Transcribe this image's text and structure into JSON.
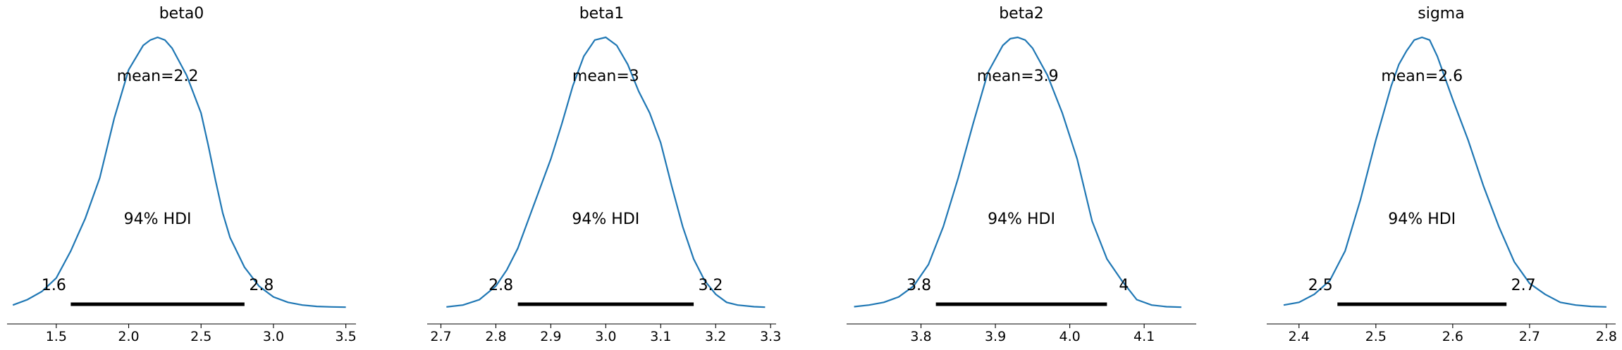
{
  "chart_data": [
    {
      "type": "line",
      "title": "beta0",
      "mean_label": "mean=2.2",
      "hdi_label": "94% HDI",
      "hdi": [
        1.6,
        2.8
      ],
      "hdi_tick_labels": [
        "1.6",
        "2.8"
      ],
      "xlim": [
        1.16,
        3.57
      ],
      "ticks": [
        1.5,
        2.0,
        2.5,
        3.0,
        3.5
      ],
      "tick_labels": [
        "1.5",
        "2.0",
        "2.5",
        "3.0",
        "3.5"
      ],
      "x": [
        1.2,
        1.3,
        1.4,
        1.5,
        1.55,
        1.6,
        1.65,
        1.7,
        1.8,
        1.9,
        2.0,
        2.1,
        2.15,
        2.2,
        2.25,
        2.3,
        2.4,
        2.5,
        2.55,
        2.6,
        2.65,
        2.7,
        2.8,
        2.9,
        3.0,
        3.1,
        3.2,
        3.3,
        3.4,
        3.5
      ],
      "y": [
        0.01,
        0.03,
        0.06,
        0.11,
        0.16,
        0.21,
        0.27,
        0.33,
        0.48,
        0.7,
        0.88,
        0.97,
        0.99,
        1.0,
        0.99,
        0.96,
        0.86,
        0.72,
        0.6,
        0.47,
        0.35,
        0.26,
        0.15,
        0.08,
        0.04,
        0.02,
        0.01,
        0.005,
        0.003,
        0.002
      ]
    },
    {
      "type": "line",
      "title": "beta1",
      "mean_label": "mean=3",
      "hdi_label": "94% HDI",
      "hdi": [
        2.84,
        3.16
      ],
      "hdi_tick_labels": [
        "2.8",
        "3.2"
      ],
      "xlim": [
        2.675,
        3.31
      ],
      "ticks": [
        2.7,
        2.8,
        2.9,
        3.0,
        3.1,
        3.2,
        3.3
      ],
      "tick_labels": [
        "2.7",
        "2.8",
        "2.9",
        "3.0",
        "3.1",
        "3.2",
        "3.3"
      ],
      "x": [
        2.71,
        2.74,
        2.77,
        2.8,
        2.82,
        2.84,
        2.86,
        2.88,
        2.9,
        2.92,
        2.94,
        2.96,
        2.98,
        3.0,
        3.02,
        3.04,
        3.06,
        3.08,
        3.1,
        3.12,
        3.14,
        3.16,
        3.18,
        3.2,
        3.22,
        3.24,
        3.27,
        3.29
      ],
      "y": [
        0.003,
        0.01,
        0.03,
        0.08,
        0.14,
        0.22,
        0.33,
        0.44,
        0.55,
        0.68,
        0.82,
        0.93,
        0.99,
        1.0,
        0.97,
        0.9,
        0.8,
        0.72,
        0.61,
        0.45,
        0.3,
        0.18,
        0.1,
        0.05,
        0.02,
        0.01,
        0.004,
        0.002
      ]
    },
    {
      "type": "line",
      "title": "beta2",
      "mean_label": "mean=3.9",
      "hdi_label": "94% HDI",
      "hdi": [
        3.82,
        4.05
      ],
      "hdi_tick_labels": [
        "3.8",
        "4"
      ],
      "xlim": [
        3.7,
        4.17
      ],
      "ticks": [
        3.8,
        3.9,
        4.0,
        4.1
      ],
      "tick_labels": [
        "3.8",
        "3.9",
        "4.0",
        "4.1"
      ],
      "x": [
        3.71,
        3.73,
        3.75,
        3.77,
        3.79,
        3.81,
        3.83,
        3.85,
        3.87,
        3.89,
        3.91,
        3.92,
        3.93,
        3.94,
        3.95,
        3.97,
        3.99,
        4.01,
        4.03,
        4.05,
        4.07,
        4.09,
        4.11,
        4.13,
        4.15
      ],
      "y": [
        0.004,
        0.01,
        0.02,
        0.04,
        0.08,
        0.16,
        0.3,
        0.48,
        0.68,
        0.87,
        0.97,
        0.995,
        1.0,
        0.99,
        0.96,
        0.86,
        0.72,
        0.55,
        0.32,
        0.18,
        0.1,
        0.03,
        0.01,
        0.004,
        0.002
      ]
    },
    {
      "type": "line",
      "title": "sigma",
      "mean_label": "mean=2.6",
      "hdi_label": "94% HDI",
      "hdi": [
        2.45,
        2.67
      ],
      "hdi_tick_labels": [
        "2.5",
        "2.7"
      ],
      "xlim": [
        2.358,
        2.812
      ],
      "ticks": [
        2.4,
        2.5,
        2.6,
        2.7,
        2.8
      ],
      "tick_labels": [
        "2.4",
        "2.5",
        "2.6",
        "2.7",
        "2.8"
      ],
      "x": [
        2.38,
        2.4,
        2.42,
        2.44,
        2.46,
        2.48,
        2.5,
        2.52,
        2.53,
        2.54,
        2.55,
        2.56,
        2.57,
        2.58,
        2.6,
        2.62,
        2.64,
        2.66,
        2.68,
        2.7,
        2.72,
        2.74,
        2.76,
        2.78,
        2.8
      ],
      "y": [
        0.01,
        0.02,
        0.05,
        0.1,
        0.21,
        0.4,
        0.62,
        0.82,
        0.9,
        0.95,
        0.99,
        1.0,
        0.99,
        0.93,
        0.77,
        0.62,
        0.45,
        0.3,
        0.17,
        0.09,
        0.05,
        0.02,
        0.01,
        0.005,
        0.003
      ]
    }
  ]
}
